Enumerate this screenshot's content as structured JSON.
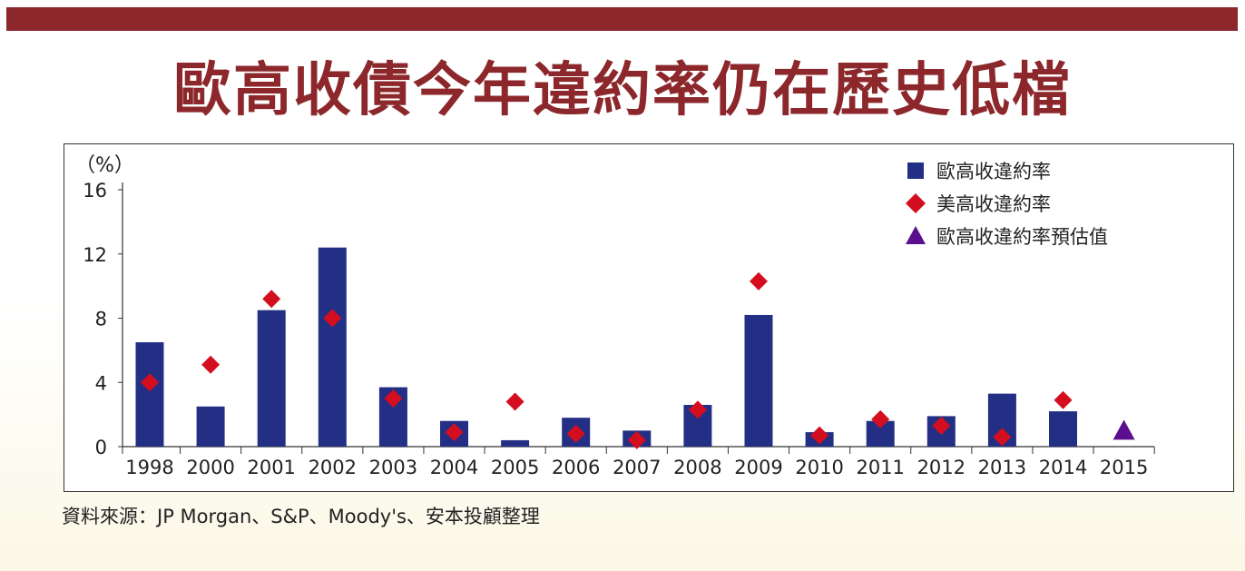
{
  "header": {
    "title": "歐高收債今年違約率仍在歷史低檔"
  },
  "colors": {
    "bar": "#232f84",
    "diamond": "#d40e1f",
    "triangle": "#5b0f8e",
    "title": "#8c272b"
  },
  "chart_data": {
    "type": "bar",
    "unit_label": "（%）",
    "categories": [
      "1998",
      "2000",
      "2001",
      "2002",
      "2003",
      "2004",
      "2005",
      "2006",
      "2007",
      "2008",
      "2009",
      "2010",
      "2011",
      "2012",
      "2013",
      "2014",
      "2015"
    ],
    "yticks": [
      0,
      4,
      8,
      12,
      16
    ],
    "ylim": [
      0,
      16
    ],
    "series": [
      {
        "name": "歐高收違約率",
        "kind": "bar",
        "values": [
          6.5,
          2.5,
          8.5,
          12.4,
          3.7,
          1.6,
          0.4,
          1.8,
          1.0,
          2.6,
          8.2,
          0.9,
          1.6,
          1.9,
          3.3,
          2.2,
          null
        ]
      },
      {
        "name": "美高收違約率",
        "kind": "diamond",
        "values": [
          4.0,
          5.1,
          9.2,
          8.0,
          3.0,
          0.9,
          2.8,
          0.8,
          0.4,
          2.3,
          10.3,
          0.7,
          1.7,
          1.3,
          0.6,
          2.9,
          null
        ]
      },
      {
        "name": "歐高收違約率預估值",
        "kind": "triangle",
        "values": [
          null,
          null,
          null,
          null,
          null,
          null,
          null,
          null,
          null,
          null,
          null,
          null,
          null,
          null,
          null,
          null,
          1.0
        ]
      }
    ],
    "legend_position": "top-right",
    "grid": false
  },
  "footer": {
    "source": "資料來源：JP Morgan、S&P、Moody's、安本投顧整理"
  }
}
